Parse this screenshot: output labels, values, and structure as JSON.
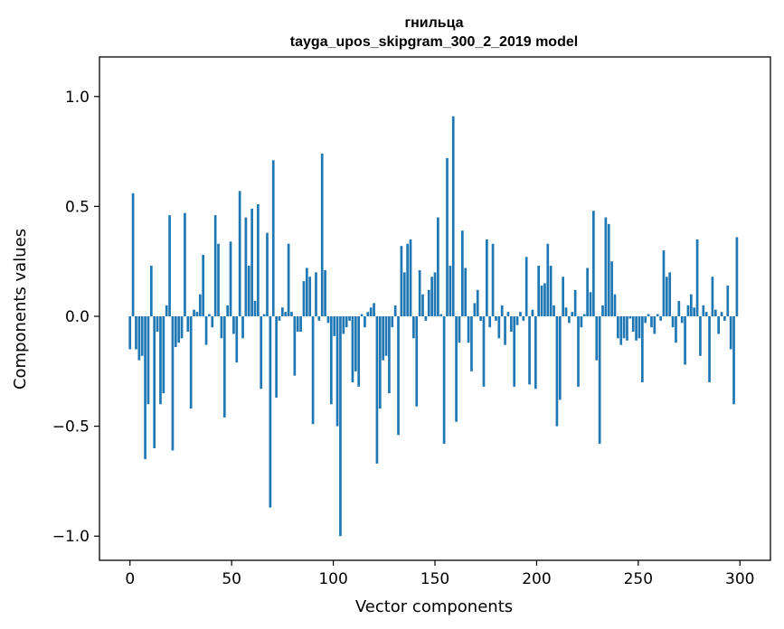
{
  "chart_data": {
    "type": "bar",
    "title_lines": [
      "гнильца",
      "tayga_upos_skipgram_300_2_2019 model"
    ],
    "xlabel": "Vector components",
    "ylabel": "Components values",
    "xlim": [
      -15,
      315
    ],
    "ylim": [
      -1.11,
      1.18
    ],
    "xticks": [
      0,
      50,
      100,
      150,
      200,
      250,
      300
    ],
    "yticks": [
      -1.0,
      -0.5,
      0.0,
      0.5,
      1.0
    ],
    "xtick_labels": [
      "0",
      "50",
      "100",
      "150",
      "200",
      "250",
      "300"
    ],
    "ytick_labels": [
      "−1.0",
      "−0.5",
      "0.0",
      "0.5",
      "1.0"
    ],
    "bar_color": "#1f77b4",
    "values": [
      -0.15,
      0.56,
      -0.15,
      -0.2,
      -0.18,
      -0.65,
      -0.4,
      0.23,
      -0.6,
      -0.07,
      -0.4,
      -0.35,
      0.05,
      0.46,
      -0.61,
      -0.14,
      -0.12,
      -0.1,
      0.47,
      -0.07,
      -0.42,
      0.03,
      0.02,
      0.1,
      0.28,
      -0.13,
      0.01,
      -0.05,
      0.46,
      0.33,
      -0.1,
      -0.46,
      0.05,
      0.34,
      -0.08,
      -0.21,
      0.57,
      -0.1,
      0.45,
      0.23,
      0.49,
      0.07,
      0.51,
      -0.33,
      0.01,
      0.38,
      -0.87,
      0.71,
      -0.37,
      -0.02,
      0.04,
      0.02,
      0.33,
      0.02,
      -0.27,
      -0.07,
      -0.07,
      0.16,
      0.22,
      0.18,
      -0.49,
      0.2,
      -0.02,
      0.74,
      0.21,
      -0.03,
      -0.4,
      -0.09,
      -0.5,
      -1.0,
      -0.08,
      -0.05,
      -0.02,
      -0.3,
      -0.25,
      -0.32,
      0.01,
      -0.05,
      0.02,
      0.04,
      0.06,
      -0.67,
      -0.42,
      -0.2,
      -0.18,
      -0.35,
      -0.05,
      0.05,
      -0.54,
      0.32,
      0.2,
      0.33,
      0.35,
      -0.1,
      -0.41,
      0.21,
      0.1,
      -0.02,
      0.12,
      0.18,
      0.2,
      0.45,
      0.01,
      -0.58,
      0.72,
      0.23,
      0.91,
      -0.48,
      -0.12,
      0.39,
      0.22,
      -0.12,
      -0.25,
      0.06,
      0.12,
      -0.02,
      -0.32,
      0.35,
      -0.05,
      0.33,
      -0.02,
      -0.1,
      0.05,
      -0.13,
      0.02,
      -0.07,
      -0.32,
      -0.04,
      0.02,
      -0.02,
      0.27,
      -0.31,
      0.03,
      -0.33,
      0.23,
      0.14,
      0.15,
      0.33,
      0.23,
      0.05,
      -0.5,
      -0.38,
      0.18,
      0.04,
      -0.03,
      0.02,
      0.12,
      -0.32,
      -0.05,
      0.01,
      0.22,
      0.11,
      0.48,
      -0.2,
      -0.58,
      0.05,
      0.45,
      0.42,
      0.25,
      0.1,
      -0.1,
      -0.13,
      -0.1,
      -0.11,
      -0.01,
      -0.07,
      -0.11,
      -0.1,
      -0.3,
      -0.03,
      0.01,
      -0.05,
      -0.08,
      0.01,
      -0.02,
      0.3,
      0.18,
      0.2,
      -0.05,
      -0.12,
      0.07,
      -0.03,
      -0.22,
      0.05,
      0.1,
      0.04,
      0.35,
      -0.18,
      0.05,
      0.02,
      -0.3,
      0.18,
      0.03,
      -0.08,
      0.02,
      -0.02,
      0.14,
      -0.15,
      -0.4,
      0.36
    ]
  }
}
